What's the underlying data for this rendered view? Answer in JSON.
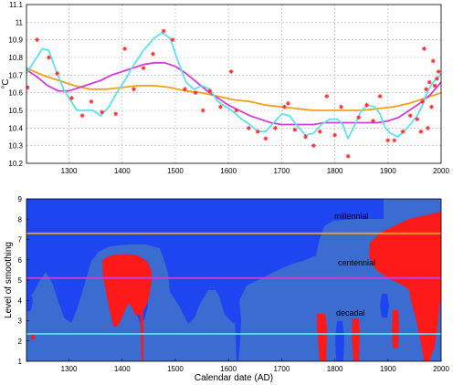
{
  "chart_data": [
    {
      "type": "scatter",
      "xlabel": "",
      "ylabel": "°C",
      "xlim": [
        1220,
        2000
      ],
      "ylim": [
        10.2,
        11.1
      ],
      "x_ticks": [
        "1300",
        "1400",
        "1500",
        "1600",
        "1700",
        "1800",
        "1900",
        "2000"
      ],
      "y_ticks": [
        "10.2",
        "10.3",
        "10.4",
        "10.5",
        "10.6",
        "10.7",
        "10.8",
        "10.9",
        "11",
        "11.1"
      ],
      "grid": true,
      "colors": {
        "points": "#ff2a2a",
        "decadal": "#5fe0f0",
        "centennial": "#d23cd8",
        "millennial": "#f2a01a"
      },
      "points": [
        {
          "x": 1222,
          "y": 10.63
        },
        {
          "x": 1240,
          "y": 10.9
        },
        {
          "x": 1262,
          "y": 10.8
        },
        {
          "x": 1278,
          "y": 10.71
        },
        {
          "x": 1305,
          "y": 10.57
        },
        {
          "x": 1325,
          "y": 10.47
        },
        {
          "x": 1342,
          "y": 10.55
        },
        {
          "x": 1362,
          "y": 10.49
        },
        {
          "x": 1388,
          "y": 10.48
        },
        {
          "x": 1405,
          "y": 10.85
        },
        {
          "x": 1422,
          "y": 10.62
        },
        {
          "x": 1440,
          "y": 10.74
        },
        {
          "x": 1458,
          "y": 10.82
        },
        {
          "x": 1478,
          "y": 10.95
        },
        {
          "x": 1495,
          "y": 10.9
        },
        {
          "x": 1518,
          "y": 10.62
        },
        {
          "x": 1538,
          "y": 10.6
        },
        {
          "x": 1552,
          "y": 10.5
        },
        {
          "x": 1565,
          "y": 10.61
        },
        {
          "x": 1585,
          "y": 10.52
        },
        {
          "x": 1605,
          "y": 10.72
        },
        {
          "x": 1615,
          "y": 10.5
        },
        {
          "x": 1638,
          "y": 10.4
        },
        {
          "x": 1655,
          "y": 10.38
        },
        {
          "x": 1670,
          "y": 10.34
        },
        {
          "x": 1688,
          "y": 10.4
        },
        {
          "x": 1705,
          "y": 10.52
        },
        {
          "x": 1712,
          "y": 10.54
        },
        {
          "x": 1725,
          "y": 10.39
        },
        {
          "x": 1745,
          "y": 10.35
        },
        {
          "x": 1760,
          "y": 10.3
        },
        {
          "x": 1772,
          "y": 10.38
        },
        {
          "x": 1785,
          "y": 10.58
        },
        {
          "x": 1800,
          "y": 10.36
        },
        {
          "x": 1812,
          "y": 10.52
        },
        {
          "x": 1825,
          "y": 10.24
        },
        {
          "x": 1845,
          "y": 10.46
        },
        {
          "x": 1860,
          "y": 10.53
        },
        {
          "x": 1872,
          "y": 10.44
        },
        {
          "x": 1885,
          "y": 10.58
        },
        {
          "x": 1900,
          "y": 10.33
        },
        {
          "x": 1912,
          "y": 10.33
        },
        {
          "x": 1928,
          "y": 10.38
        },
        {
          "x": 1942,
          "y": 10.47
        },
        {
          "x": 1955,
          "y": 10.45
        },
        {
          "x": 1962,
          "y": 10.38
        },
        {
          "x": 1965,
          "y": 10.55
        },
        {
          "x": 1968,
          "y": 10.85
        },
        {
          "x": 1972,
          "y": 10.62
        },
        {
          "x": 1975,
          "y": 10.4
        },
        {
          "x": 1978,
          "y": 10.66
        },
        {
          "x": 1982,
          "y": 10.52
        },
        {
          "x": 1985,
          "y": 10.78
        },
        {
          "x": 1988,
          "y": 10.64
        },
        {
          "x": 1992,
          "y": 10.68
        },
        {
          "x": 1995,
          "y": 10.72
        }
      ],
      "series": [
        {
          "values": [
            [
              1220,
              10.71
            ],
            [
              1235,
              10.78
            ],
            [
              1250,
              10.85
            ],
            [
              1262,
              10.84
            ],
            [
              1275,
              10.73
            ],
            [
              1290,
              10.62
            ],
            [
              1300,
              10.57
            ],
            [
              1315,
              10.5
            ],
            [
              1330,
              10.5
            ],
            [
              1345,
              10.5
            ],
            [
              1360,
              10.47
            ],
            [
              1375,
              10.52
            ],
            [
              1390,
              10.6
            ],
            [
              1405,
              10.67
            ],
            [
              1420,
              10.75
            ],
            [
              1440,
              10.84
            ],
            [
              1460,
              10.91
            ],
            [
              1475,
              10.94
            ],
            [
              1490,
              10.91
            ],
            [
              1505,
              10.78
            ],
            [
              1520,
              10.66
            ],
            [
              1535,
              10.62
            ],
            [
              1550,
              10.64
            ],
            [
              1565,
              10.62
            ],
            [
              1580,
              10.55
            ],
            [
              1595,
              10.52
            ],
            [
              1610,
              10.49
            ],
            [
              1625,
              10.45
            ],
            [
              1640,
              10.42
            ],
            [
              1655,
              10.38
            ],
            [
              1670,
              10.38
            ],
            [
              1685,
              10.43
            ],
            [
              1700,
              10.48
            ],
            [
              1715,
              10.47
            ],
            [
              1730,
              10.41
            ],
            [
              1745,
              10.36
            ],
            [
              1760,
              10.37
            ],
            [
              1775,
              10.42
            ],
            [
              1790,
              10.45
            ],
            [
              1805,
              10.45
            ],
            [
              1815,
              10.42
            ],
            [
              1825,
              10.34
            ],
            [
              1838,
              10.42
            ],
            [
              1850,
              10.5
            ],
            [
              1862,
              10.53
            ],
            [
              1875,
              10.52
            ],
            [
              1885,
              10.48
            ],
            [
              1895,
              10.4
            ],
            [
              1905,
              10.37
            ],
            [
              1918,
              10.35
            ],
            [
              1930,
              10.38
            ],
            [
              1942,
              10.42
            ],
            [
              1955,
              10.47
            ],
            [
              1965,
              10.53
            ],
            [
              1975,
              10.61
            ],
            [
              1985,
              10.66
            ],
            [
              1995,
              10.69
            ],
            [
              2000,
              10.71
            ]
          ]
        },
        {
          "values": [
            [
              1220,
              10.73
            ],
            [
              1240,
              10.69
            ],
            [
              1260,
              10.64
            ],
            [
              1280,
              10.61
            ],
            [
              1300,
              10.61
            ],
            [
              1320,
              10.63
            ],
            [
              1340,
              10.65
            ],
            [
              1360,
              10.67
            ],
            [
              1380,
              10.7
            ],
            [
              1400,
              10.72
            ],
            [
              1420,
              10.74
            ],
            [
              1440,
              10.76
            ],
            [
              1460,
              10.77
            ],
            [
              1480,
              10.77
            ],
            [
              1500,
              10.75
            ],
            [
              1520,
              10.71
            ],
            [
              1540,
              10.66
            ],
            [
              1560,
              10.61
            ],
            [
              1580,
              10.57
            ],
            [
              1600,
              10.53
            ],
            [
              1620,
              10.5
            ],
            [
              1640,
              10.47
            ],
            [
              1660,
              10.45
            ],
            [
              1680,
              10.43
            ],
            [
              1700,
              10.42
            ],
            [
              1720,
              10.42
            ],
            [
              1740,
              10.42
            ],
            [
              1760,
              10.42
            ],
            [
              1780,
              10.43
            ],
            [
              1800,
              10.43
            ],
            [
              1820,
              10.43
            ],
            [
              1840,
              10.43
            ],
            [
              1860,
              10.43
            ],
            [
              1880,
              10.43
            ],
            [
              1900,
              10.44
            ],
            [
              1920,
              10.46
            ],
            [
              1940,
              10.5
            ],
            [
              1960,
              10.54
            ],
            [
              1980,
              10.59
            ],
            [
              2000,
              10.66
            ]
          ]
        },
        {
          "values": [
            [
              1220,
              10.74
            ],
            [
              1250,
              10.7
            ],
            [
              1280,
              10.67
            ],
            [
              1310,
              10.64
            ],
            [
              1340,
              10.62
            ],
            [
              1370,
              10.62
            ],
            [
              1400,
              10.63
            ],
            [
              1430,
              10.64
            ],
            [
              1460,
              10.64
            ],
            [
              1490,
              10.63
            ],
            [
              1520,
              10.61
            ],
            [
              1550,
              10.6
            ],
            [
              1580,
              10.58
            ],
            [
              1610,
              10.56
            ],
            [
              1640,
              10.55
            ],
            [
              1670,
              10.53
            ],
            [
              1700,
              10.52
            ],
            [
              1730,
              10.51
            ],
            [
              1760,
              10.5
            ],
            [
              1790,
              10.5
            ],
            [
              1820,
              10.5
            ],
            [
              1850,
              10.5
            ],
            [
              1880,
              10.51
            ],
            [
              1910,
              10.52
            ],
            [
              1940,
              10.54
            ],
            [
              1970,
              10.57
            ],
            [
              2000,
              10.6
            ]
          ]
        }
      ]
    },
    {
      "type": "heatmap",
      "xlabel": "Calendar date (AD)",
      "ylabel": "Level of smoothing",
      "xlim": [
        1220,
        2000
      ],
      "ylim": [
        1,
        9
      ],
      "x_ticks": [
        "1300",
        "1400",
        "1500",
        "1600",
        "1700",
        "1800",
        "1900",
        "2000"
      ],
      "y_ticks": [
        "1",
        "2",
        "3",
        "4",
        "5",
        "6",
        "7",
        "8",
        "9"
      ],
      "colors": {
        "neutral": "#3b6cd0",
        "negative": "#1e46f0",
        "positive": "#ff1a1a"
      },
      "annotations": [
        "millennial",
        "centennial",
        "decadal"
      ],
      "reference_lines": [
        {
          "level": 7.3,
          "color": "#f2a01a"
        },
        {
          "level": 5.1,
          "color": "#d23cd8"
        },
        {
          "level": 2.35,
          "color": "#5fe0f0"
        }
      ]
    }
  ]
}
